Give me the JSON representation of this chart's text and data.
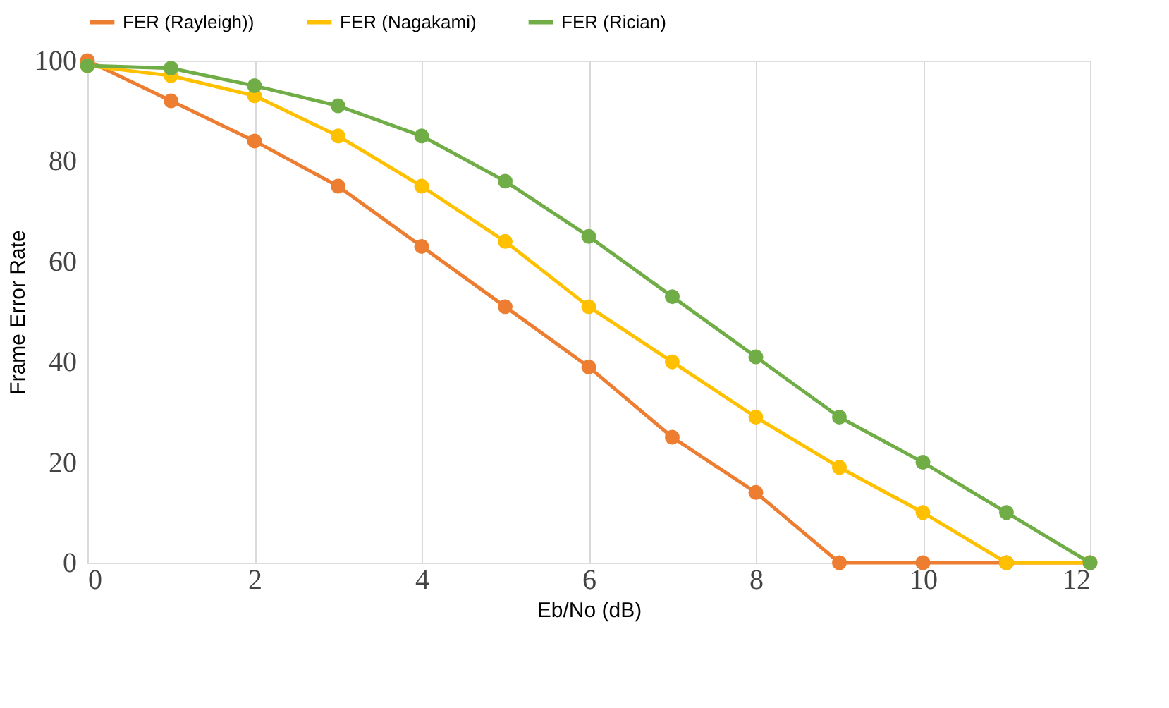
{
  "chart_data": {
    "type": "line",
    "xlabel": "Eb/No (dB)",
    "ylabel": "Frame Error Rate",
    "x": [
      0,
      1,
      2,
      3,
      4,
      5,
      6,
      7,
      8,
      9,
      10,
      11,
      12
    ],
    "series": [
      {
        "name": "FER (Rayleigh))",
        "color": "#ed7d31",
        "values": [
          100,
          92,
          84,
          75,
          63,
          51,
          39,
          25,
          14,
          0,
          0,
          0,
          0
        ]
      },
      {
        "name": "FER (Nagakami)",
        "color": "#ffc000",
        "values": [
          99,
          97,
          93,
          85,
          75,
          64,
          51,
          40,
          29,
          19,
          10,
          0,
          0
        ]
      },
      {
        "name": "FER (Rician)",
        "color": "#70ad47",
        "values": [
          99,
          98.5,
          95,
          91,
          85,
          76,
          65,
          53,
          41,
          29,
          20,
          10,
          0
        ]
      }
    ],
    "xlim": [
      0,
      12
    ],
    "xticks": [
      0,
      2,
      4,
      6,
      8,
      10,
      12
    ],
    "ylim": [
      0,
      100
    ],
    "yticks": [
      0,
      20,
      40,
      60,
      80,
      100
    ],
    "grid": "x",
    "legend": "top",
    "marker": "circle",
    "line_style": "solid"
  }
}
